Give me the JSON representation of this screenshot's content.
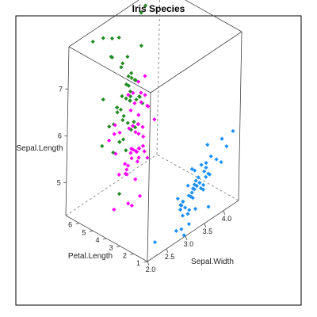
{
  "chart_data": {
    "type": "scatter",
    "subtype": "3d-scatter",
    "title": "Iris Species",
    "axes": {
      "x": {
        "label": "Sepal.Width",
        "range": [
          2.0,
          4.4
        ],
        "ticks": [
          "2.0",
          "2.5",
          "3.0",
          "3.5",
          "4.0"
        ]
      },
      "y": {
        "label": "Petal.Length",
        "range": [
          1.0,
          7.0
        ],
        "ticks": [
          "1",
          "2",
          "3",
          "4",
          "5",
          "6"
        ]
      },
      "z": {
        "label": "Sepal.Length",
        "range": [
          4.3,
          7.9
        ],
        "ticks": [
          "5",
          "6",
          "7"
        ]
      }
    },
    "box": true,
    "series": [
      {
        "color": "#1E90FF",
        "points": [
          [
            3.5,
            1.4,
            5.1
          ],
          [
            3.0,
            1.4,
            4.9
          ],
          [
            3.2,
            1.3,
            4.7
          ],
          [
            3.1,
            1.5,
            4.6
          ],
          [
            3.6,
            1.4,
            5.0
          ],
          [
            3.9,
            1.7,
            5.4
          ],
          [
            3.4,
            1.4,
            4.6
          ],
          [
            3.4,
            1.5,
            5.0
          ],
          [
            2.9,
            1.4,
            4.4
          ],
          [
            3.1,
            1.5,
            4.9
          ],
          [
            3.7,
            1.5,
            5.4
          ],
          [
            3.4,
            1.6,
            4.8
          ],
          [
            3.0,
            1.4,
            4.8
          ],
          [
            3.0,
            1.1,
            4.3
          ],
          [
            4.0,
            1.2,
            5.8
          ],
          [
            4.4,
            1.5,
            5.7
          ],
          [
            3.9,
            1.3,
            5.4
          ],
          [
            3.5,
            1.4,
            5.1
          ],
          [
            3.8,
            1.7,
            5.7
          ],
          [
            3.8,
            1.5,
            5.1
          ],
          [
            3.4,
            1.7,
            5.4
          ],
          [
            3.7,
            1.5,
            5.1
          ],
          [
            3.6,
            1.0,
            4.6
          ],
          [
            3.3,
            1.7,
            5.1
          ],
          [
            3.4,
            1.9,
            4.8
          ],
          [
            3.0,
            1.6,
            5.0
          ],
          [
            3.4,
            1.6,
            5.0
          ],
          [
            3.5,
            1.5,
            5.2
          ],
          [
            3.4,
            1.4,
            5.2
          ],
          [
            3.2,
            1.6,
            4.7
          ],
          [
            3.1,
            1.6,
            4.8
          ],
          [
            3.4,
            1.5,
            5.4
          ],
          [
            4.1,
            1.5,
            5.2
          ],
          [
            4.2,
            1.4,
            5.5
          ],
          [
            3.1,
            1.5,
            4.9
          ],
          [
            3.2,
            1.2,
            5.0
          ],
          [
            3.5,
            1.3,
            5.5
          ],
          [
            3.6,
            1.4,
            4.9
          ],
          [
            3.0,
            1.3,
            4.4
          ],
          [
            3.4,
            1.5,
            5.1
          ],
          [
            3.5,
            1.3,
            5.0
          ],
          [
            2.3,
            1.3,
            4.5
          ],
          [
            3.2,
            1.3,
            4.4
          ],
          [
            3.5,
            1.6,
            5.0
          ],
          [
            3.8,
            1.9,
            5.1
          ],
          [
            3.0,
            1.4,
            4.8
          ],
          [
            3.8,
            1.6,
            5.1
          ],
          [
            3.2,
            1.4,
            4.6
          ],
          [
            3.7,
            1.5,
            5.3
          ],
          [
            3.3,
            1.4,
            5.0
          ]
        ]
      },
      {
        "color": "#FF00FF",
        "points": [
          [
            3.2,
            4.7,
            7.0
          ],
          [
            3.2,
            4.5,
            6.4
          ],
          [
            3.1,
            4.9,
            6.9
          ],
          [
            2.3,
            4.0,
            5.5
          ],
          [
            2.8,
            4.6,
            6.5
          ],
          [
            2.8,
            4.5,
            5.7
          ],
          [
            3.3,
            4.7,
            6.3
          ],
          [
            2.4,
            3.3,
            4.9
          ],
          [
            2.9,
            4.6,
            6.6
          ],
          [
            2.7,
            3.9,
            5.2
          ],
          [
            2.0,
            3.5,
            5.0
          ],
          [
            3.0,
            4.2,
            5.9
          ],
          [
            2.2,
            4.0,
            6.0
          ],
          [
            2.9,
            4.7,
            6.1
          ],
          [
            2.9,
            3.6,
            5.6
          ],
          [
            3.1,
            4.4,
            6.7
          ],
          [
            3.0,
            4.5,
            5.6
          ],
          [
            2.7,
            4.1,
            5.8
          ],
          [
            2.2,
            4.5,
            6.2
          ],
          [
            2.5,
            3.9,
            5.6
          ],
          [
            3.2,
            4.8,
            5.9
          ],
          [
            2.8,
            4.0,
            6.1
          ],
          [
            2.5,
            4.9,
            6.3
          ],
          [
            2.8,
            4.7,
            6.1
          ],
          [
            2.9,
            4.3,
            6.4
          ],
          [
            3.0,
            4.4,
            6.6
          ],
          [
            2.8,
            4.8,
            6.8
          ],
          [
            3.0,
            5.0,
            6.7
          ],
          [
            2.9,
            4.5,
            6.0
          ],
          [
            2.6,
            3.5,
            5.7
          ],
          [
            2.4,
            3.8,
            5.5
          ],
          [
            2.4,
            3.7,
            5.5
          ],
          [
            2.7,
            3.9,
            5.8
          ],
          [
            2.7,
            5.1,
            6.0
          ],
          [
            3.0,
            4.5,
            5.4
          ],
          [
            3.4,
            4.5,
            6.0
          ],
          [
            3.1,
            4.7,
            6.7
          ],
          [
            2.3,
            4.4,
            6.3
          ],
          [
            3.0,
            4.1,
            5.6
          ],
          [
            2.5,
            4.0,
            5.5
          ],
          [
            2.6,
            4.4,
            5.5
          ],
          [
            3.0,
            4.6,
            6.1
          ],
          [
            2.6,
            4.0,
            5.8
          ],
          [
            2.3,
            3.3,
            5.0
          ],
          [
            2.7,
            4.2,
            5.6
          ],
          [
            3.0,
            4.2,
            5.7
          ],
          [
            2.9,
            4.2,
            5.7
          ],
          [
            2.9,
            4.3,
            6.2
          ],
          [
            2.5,
            3.0,
            5.1
          ],
          [
            2.8,
            4.1,
            5.7
          ]
        ]
      },
      {
        "color": "#228B22",
        "points": [
          [
            3.3,
            6.0,
            6.3
          ],
          [
            2.7,
            5.1,
            5.8
          ],
          [
            3.0,
            5.9,
            7.1
          ],
          [
            2.9,
            5.6,
            6.3
          ],
          [
            3.0,
            5.8,
            6.5
          ],
          [
            3.0,
            6.6,
            7.6
          ],
          [
            2.5,
            4.5,
            4.9
          ],
          [
            2.9,
            6.3,
            7.3
          ],
          [
            2.5,
            5.8,
            6.7
          ],
          [
            3.6,
            6.1,
            7.2
          ],
          [
            3.2,
            5.1,
            6.5
          ],
          [
            2.7,
            5.3,
            6.4
          ],
          [
            3.0,
            5.5,
            6.8
          ],
          [
            2.5,
            5.0,
            5.7
          ],
          [
            2.8,
            5.1,
            5.8
          ],
          [
            3.2,
            5.3,
            6.4
          ],
          [
            3.0,
            5.5,
            6.5
          ],
          [
            3.8,
            6.7,
            7.7
          ],
          [
            2.6,
            6.9,
            7.7
          ],
          [
            2.2,
            5.0,
            6.0
          ],
          [
            3.2,
            5.7,
            6.9
          ],
          [
            2.8,
            4.9,
            5.6
          ],
          [
            2.8,
            6.7,
            7.7
          ],
          [
            2.7,
            4.9,
            6.3
          ],
          [
            3.3,
            5.7,
            6.7
          ],
          [
            3.2,
            6.0,
            7.2
          ],
          [
            2.8,
            4.8,
            6.2
          ],
          [
            3.0,
            4.9,
            6.1
          ],
          [
            2.8,
            5.6,
            6.4
          ],
          [
            3.0,
            5.8,
            7.2
          ],
          [
            2.8,
            6.1,
            7.4
          ],
          [
            3.8,
            6.4,
            7.9
          ],
          [
            2.8,
            5.6,
            6.4
          ],
          [
            2.8,
            5.1,
            6.3
          ],
          [
            2.6,
            5.6,
            6.1
          ],
          [
            3.0,
            6.1,
            7.7
          ],
          [
            3.4,
            5.6,
            6.3
          ],
          [
            3.1,
            5.5,
            6.4
          ],
          [
            3.0,
            4.8,
            6.0
          ],
          [
            3.1,
            5.4,
            6.9
          ],
          [
            3.1,
            5.6,
            6.7
          ],
          [
            3.1,
            5.1,
            6.9
          ],
          [
            2.7,
            5.1,
            5.8
          ],
          [
            3.2,
            5.9,
            6.8
          ],
          [
            3.3,
            5.7,
            6.7
          ],
          [
            3.0,
            5.2,
            6.7
          ],
          [
            2.5,
            5.0,
            6.3
          ],
          [
            3.0,
            5.2,
            6.5
          ],
          [
            3.4,
            5.4,
            6.2
          ],
          [
            3.0,
            5.1,
            5.9
          ]
        ]
      }
    ]
  }
}
